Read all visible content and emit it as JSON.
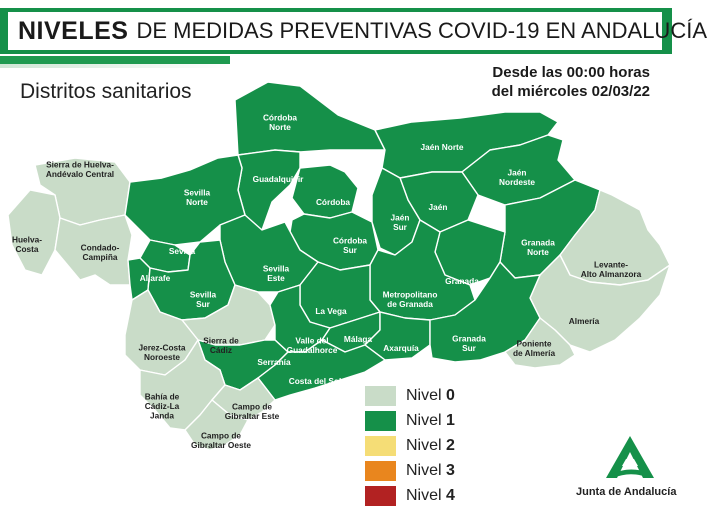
{
  "header": {
    "title_bold": "NIVELES",
    "title_rest": "DE MEDIDAS PREVENTIVAS COVID-19 EN ANDALUCÍA",
    "subtitle": "Distritos sanitarios",
    "date_line1": "Desde las 00:00 horas",
    "date_line2": "del miércoles 02/03/22"
  },
  "colors": {
    "nivel_0": "#c9dcc8",
    "nivel_1": "#159049",
    "nivel_2": "#f5dd76",
    "nivel_3": "#e9861e",
    "nivel_4": "#b22222",
    "border": "#ffffff"
  },
  "legend": {
    "items": [
      {
        "label": "Nivel",
        "level": "0",
        "color": "#c9dcc8"
      },
      {
        "label": "Nivel",
        "level": "1",
        "color": "#159049"
      },
      {
        "label": "Nivel",
        "level": "2",
        "color": "#f5dd76"
      },
      {
        "label": "Nivel",
        "level": "3",
        "color": "#e9861e"
      },
      {
        "label": "Nivel",
        "level": "4",
        "color": "#b22222"
      }
    ]
  },
  "districts": [
    {
      "name": "Córdoba Norte",
      "lines": [
        "Córdoba",
        "Norte"
      ],
      "level": 1
    },
    {
      "name": "Guadalquivir",
      "lines": [
        "Guadalquivir"
      ],
      "level": 1
    },
    {
      "name": "Córdoba",
      "lines": [
        "Córdoba"
      ],
      "level": 1
    },
    {
      "name": "Córdoba Sur",
      "lines": [
        "Córdoba",
        "Sur"
      ],
      "level": 1
    },
    {
      "name": "Jaén Norte",
      "lines": [
        "Jaén Norte"
      ],
      "level": 1
    },
    {
      "name": "Jaén Nordeste",
      "lines": [
        "Jaén",
        "Nordeste"
      ],
      "level": 1
    },
    {
      "name": "Jaén",
      "lines": [
        "Jaén"
      ],
      "level": 1
    },
    {
      "name": "Jaén Sur",
      "lines": [
        "Jaén",
        "Sur"
      ],
      "level": 1
    },
    {
      "name": "Sierra de Huelva-Andévalo Central",
      "lines": [
        "Sierra de Huelva-",
        "Andévalo Central"
      ],
      "level": 0
    },
    {
      "name": "Sevilla Norte",
      "lines": [
        "Sevilla",
        "Norte"
      ],
      "level": 1
    },
    {
      "name": "Huelva-Costa",
      "lines": [
        "Huelva-",
        "Costa"
      ],
      "level": 0
    },
    {
      "name": "Condado-Campiña",
      "lines": [
        "Condado-",
        "Campiña"
      ],
      "level": 0
    },
    {
      "name": "Sevilla",
      "lines": [
        "Sevilla"
      ],
      "level": 1
    },
    {
      "name": "Aljarafe",
      "lines": [
        "Aljarafe"
      ],
      "level": 1
    },
    {
      "name": "Sevilla Este",
      "lines": [
        "Sevilla",
        "Este"
      ],
      "level": 1
    },
    {
      "name": "Sevilla Sur",
      "lines": [
        "Sevilla",
        "Sur"
      ],
      "level": 1
    },
    {
      "name": "Granada Norte",
      "lines": [
        "Granada",
        "Norte"
      ],
      "level": 1
    },
    {
      "name": "Granada",
      "lines": [
        "Granada"
      ],
      "level": 1
    },
    {
      "name": "Levante-Alto Almanzora",
      "lines": [
        "Levante-",
        "Alto Almanzora"
      ],
      "level": 0
    },
    {
      "name": "Metropolitano de Granada",
      "lines": [
        "Metropolitano",
        "de Granada"
      ],
      "level": 1
    },
    {
      "name": "La Vega",
      "lines": [
        "La Vega"
      ],
      "level": 1
    },
    {
      "name": "Almería",
      "lines": [
        "Almería"
      ],
      "level": 0
    },
    {
      "name": "Sierra de Cádiz",
      "lines": [
        "Sierra de",
        "Cádiz"
      ],
      "level": 0
    },
    {
      "name": "Jerez-Costa Noroeste",
      "lines": [
        "Jerez-Costa",
        "Noroeste"
      ],
      "level": 0
    },
    {
      "name": "Valle del Guadalhorce",
      "lines": [
        "Valle del",
        "Guadalhorce"
      ],
      "level": 1
    },
    {
      "name": "Málaga",
      "lines": [
        "Málaga"
      ],
      "level": 1
    },
    {
      "name": "Axarquía",
      "lines": [
        "Axarquía"
      ],
      "level": 1
    },
    {
      "name": "Granada Sur",
      "lines": [
        "Granada",
        "Sur"
      ],
      "level": 1
    },
    {
      "name": "Poniente de Almería",
      "lines": [
        "Poniente",
        "de Almería"
      ],
      "level": 0
    },
    {
      "name": "Serranía",
      "lines": [
        "Serranía"
      ],
      "level": 1
    },
    {
      "name": "Costa del Sol",
      "lines": [
        "Costa del Sol"
      ],
      "level": 1
    },
    {
      "name": "Bahía de Cádiz-La Janda",
      "lines": [
        "Bahía de",
        "Cádiz-La",
        "Janda"
      ],
      "level": 0
    },
    {
      "name": "Campo de Gibraltar Este",
      "lines": [
        "Campo de",
        "Gibraltar Este"
      ],
      "level": 0
    },
    {
      "name": "Campo de Gibraltar Oeste",
      "lines": [
        "Campo de",
        "Gibraltar Oeste"
      ],
      "level": 0
    }
  ],
  "brand": {
    "name": "Junta de Andalucía",
    "logo_icon": "junta-de-andalucia-logo"
  }
}
